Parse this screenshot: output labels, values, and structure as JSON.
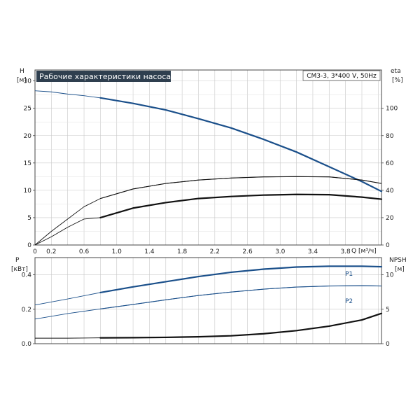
{
  "title": "Рабочие характеристики насоса",
  "model": "CM3-3, 3*400 V, 50Hz",
  "colors": {
    "blue": "#1a4f8a",
    "black": "#111111",
    "grid": "#c8c8c8",
    "frame": "#444444"
  },
  "chart_data": [
    {
      "type": "line",
      "name": "upper",
      "ylabel_left": "H",
      "ylabel_left_unit": "[м]",
      "ylabel_right": "eta",
      "ylabel_right_unit": "[%]",
      "xlabel": "Q [м³/ч]",
      "xlim": [
        0,
        4.24
      ],
      "ylim_left": [
        0,
        32
      ],
      "ylim_right": [
        0,
        128
      ],
      "x_ticks": [
        "0",
        "0.2",
        "0.6",
        "1.0",
        "1.4",
        "1.8",
        "2.2",
        "2.6",
        "3.0",
        "3.4",
        "3.8"
      ],
      "x_tick_values": [
        0,
        0.2,
        0.6,
        1.0,
        1.4,
        1.8,
        2.2,
        2.6,
        3.0,
        3.4,
        3.8
      ],
      "y_left_ticks": [
        0,
        5,
        10,
        15,
        20,
        25,
        30
      ],
      "y_right_ticks": [
        0,
        20,
        40,
        60,
        80,
        100
      ],
      "grid": true,
      "series": [
        {
          "key": "H",
          "axis": "left",
          "color": "#1a4f8a",
          "x": [
            0,
            0.2,
            0.4,
            0.6,
            0.8,
            1.2,
            1.6,
            2.0,
            2.4,
            2.8,
            3.2,
            3.6,
            4.0,
            4.24
          ],
          "y": [
            28.2,
            28.0,
            27.6,
            27.3,
            26.9,
            25.9,
            24.7,
            23.1,
            21.4,
            19.3,
            17.0,
            14.3,
            11.6,
            9.8
          ],
          "bold_from": 0.8
        },
        {
          "key": "eta_total",
          "axis": "right",
          "color": "#111111",
          "x": [
            0,
            0.2,
            0.4,
            0.6,
            0.8,
            1.2,
            1.6,
            2.0,
            2.4,
            2.8,
            3.2,
            3.6,
            4.0,
            4.24
          ],
          "y": [
            0,
            10,
            19,
            28,
            34,
            41,
            45,
            47.5,
            49,
            49.8,
            50,
            49.8,
            47.5,
            45
          ],
          "bold_from": null
        },
        {
          "key": "eta_pump",
          "axis": "right",
          "color": "#111111",
          "x": [
            0,
            0.2,
            0.4,
            0.6,
            0.8,
            1.2,
            1.6,
            2.0,
            2.4,
            2.8,
            3.2,
            3.6,
            4.0,
            4.24
          ],
          "y": [
            0,
            6,
            13,
            19,
            20,
            27,
            31,
            34,
            35.5,
            36.5,
            37,
            36.8,
            35,
            33.5
          ],
          "bold_from": 0.8
        }
      ]
    },
    {
      "type": "line",
      "name": "lower",
      "ylabel_left": "P",
      "ylabel_left_unit": "[кВт]",
      "ylabel_right": "NPSH",
      "ylabel_right_unit": "[м]",
      "xlim": [
        0,
        4.24
      ],
      "ylim_left": [
        0,
        0.5
      ],
      "ylim_right": [
        0,
        12.5
      ],
      "y_left_ticks": [
        "0.0",
        "0.2",
        "0.4"
      ],
      "y_left_tick_values": [
        0,
        0.2,
        0.4
      ],
      "y_right_ticks": [
        0,
        5,
        10
      ],
      "grid": true,
      "series": [
        {
          "key": "P1",
          "label": "P1",
          "axis": "left",
          "color": "#1a4f8a",
          "x": [
            0,
            0.4,
            0.8,
            1.2,
            1.6,
            2.0,
            2.4,
            2.8,
            3.2,
            3.6,
            4.0,
            4.24
          ],
          "y": [
            0.225,
            0.26,
            0.297,
            0.33,
            0.36,
            0.39,
            0.415,
            0.433,
            0.445,
            0.45,
            0.45,
            0.447
          ],
          "bold_from": 0.8
        },
        {
          "key": "P2",
          "label": "P2",
          "axis": "left",
          "color": "#1a4f8a",
          "x": [
            0,
            0.4,
            0.8,
            1.2,
            1.6,
            2.0,
            2.4,
            2.8,
            3.2,
            3.6,
            4.0,
            4.24
          ],
          "y": [
            0.143,
            0.175,
            0.202,
            0.228,
            0.255,
            0.28,
            0.3,
            0.317,
            0.329,
            0.335,
            0.337,
            0.335
          ],
          "bold_from": null
        },
        {
          "key": "NPSH",
          "axis": "right",
          "color": "#111111",
          "x": [
            0,
            0.4,
            0.8,
            1.2,
            1.6,
            2.0,
            2.4,
            2.8,
            3.2,
            3.6,
            4.0,
            4.24
          ],
          "y": [
            0.8,
            0.8,
            0.85,
            0.88,
            0.92,
            1.0,
            1.15,
            1.45,
            1.9,
            2.55,
            3.45,
            4.4
          ],
          "bold_from": 0.8
        }
      ]
    }
  ]
}
